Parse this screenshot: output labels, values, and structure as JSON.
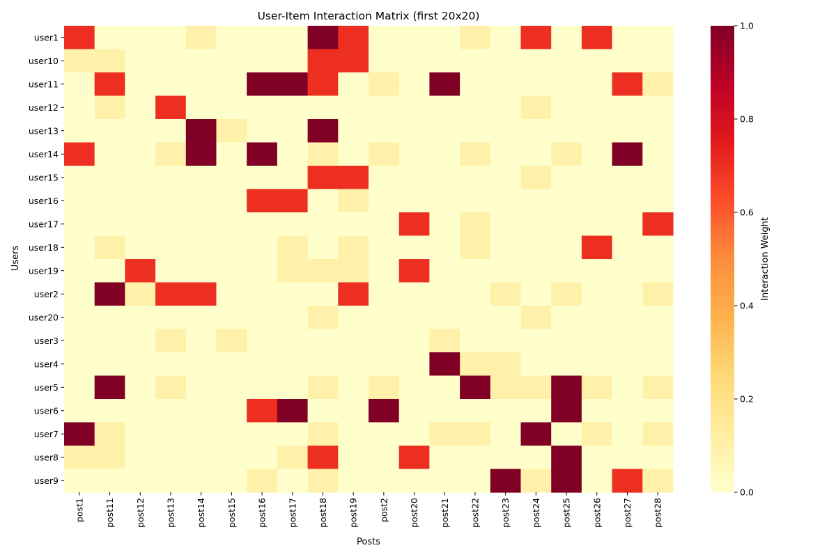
{
  "chart_data": {
    "type": "heatmap",
    "title": "User-Item Interaction Matrix (first 20x20)",
    "xlabel": "Posts",
    "ylabel": "Users",
    "colorbar_label": "Interaction Weight",
    "colormap": "YlOrRd",
    "vmin": 0,
    "vmax": 1,
    "colorbar_ticks": [
      "0.0",
      "0.2",
      "0.4",
      "0.6",
      "0.8",
      "1.0"
    ],
    "x_categories": [
      "post1",
      "post11",
      "post12",
      "post13",
      "post14",
      "post15",
      "post16",
      "post17",
      "post18",
      "post19",
      "post2",
      "post20",
      "post21",
      "post22",
      "post23",
      "post24",
      "post25",
      "post26",
      "post27",
      "post28"
    ],
    "y_categories": [
      "user1",
      "user10",
      "user11",
      "user12",
      "user13",
      "user14",
      "user15",
      "user16",
      "user17",
      "user18",
      "user19",
      "user2",
      "user20",
      "user3",
      "user4",
      "user5",
      "user6",
      "user7",
      "user8",
      "user9"
    ],
    "values": [
      [
        0.7,
        0,
        0,
        0,
        0.1,
        0,
        0,
        0,
        1,
        0.7,
        0,
        0,
        0,
        0.1,
        0,
        0.7,
        0,
        0.7,
        0,
        0
      ],
      [
        0.1,
        0.1,
        0,
        0,
        0,
        0,
        0,
        0,
        0.7,
        0.7,
        0,
        0,
        0,
        0,
        0,
        0,
        0,
        0,
        0,
        0
      ],
      [
        0,
        0.7,
        0,
        0,
        0,
        0,
        1,
        1,
        0.7,
        0,
        0.1,
        0,
        1,
        0,
        0,
        0,
        0,
        0,
        0.7,
        0.1
      ],
      [
        0,
        0.1,
        0,
        0.7,
        0,
        0,
        0,
        0,
        0,
        0,
        0,
        0,
        0,
        0,
        0,
        0.1,
        0,
        0,
        0,
        0
      ],
      [
        0,
        0,
        0,
        0,
        1,
        0.1,
        0,
        0,
        1,
        0,
        0,
        0,
        0,
        0,
        0,
        0,
        0,
        0,
        0,
        0
      ],
      [
        0.7,
        0,
        0,
        0.1,
        1,
        0,
        1,
        0,
        0.1,
        0,
        0.1,
        0,
        0,
        0.1,
        0,
        0,
        0.1,
        0,
        1,
        0
      ],
      [
        0,
        0,
        0,
        0,
        0,
        0,
        0,
        0,
        0.7,
        0.7,
        0,
        0,
        0,
        0,
        0,
        0.1,
        0,
        0,
        0,
        0
      ],
      [
        0,
        0,
        0,
        0,
        0,
        0,
        0.7,
        0.7,
        0,
        0.1,
        0,
        0,
        0,
        0,
        0,
        0,
        0,
        0,
        0,
        0
      ],
      [
        0,
        0,
        0,
        0,
        0,
        0,
        0,
        0,
        0,
        0,
        0,
        0.7,
        0,
        0.1,
        0,
        0,
        0,
        0,
        0,
        0.7
      ],
      [
        0,
        0.1,
        0,
        0,
        0,
        0,
        0,
        0.1,
        0,
        0.1,
        0,
        0,
        0,
        0.1,
        0,
        0,
        0,
        0.7,
        0,
        0
      ],
      [
        0,
        0,
        0.7,
        0,
        0,
        0,
        0,
        0.1,
        0.1,
        0.1,
        0,
        0.7,
        0,
        0,
        0,
        0,
        0,
        0,
        0,
        0
      ],
      [
        0,
        1,
        0.1,
        0.7,
        0.7,
        0,
        0,
        0,
        0,
        0.7,
        0,
        0,
        0,
        0,
        0.1,
        0,
        0.1,
        0,
        0,
        0.1
      ],
      [
        0,
        0,
        0,
        0,
        0,
        0,
        0,
        0,
        0.1,
        0,
        0,
        0,
        0,
        0,
        0,
        0.1,
        0,
        0,
        0,
        0
      ],
      [
        0,
        0,
        0,
        0.1,
        0,
        0.1,
        0,
        0,
        0,
        0,
        0,
        0,
        0.1,
        0,
        0,
        0,
        0,
        0,
        0,
        0
      ],
      [
        0,
        0,
        0,
        0,
        0,
        0,
        0,
        0,
        0,
        0,
        0,
        0,
        1,
        0.1,
        0.1,
        0,
        0,
        0,
        0,
        0
      ],
      [
        0,
        1,
        0,
        0.1,
        0,
        0,
        0,
        0,
        0.1,
        0,
        0.1,
        0,
        0,
        1,
        0.1,
        0.1,
        1,
        0.1,
        0,
        0.1
      ],
      [
        0,
        0,
        0,
        0,
        0,
        0,
        0.7,
        1,
        0,
        0,
        1,
        0,
        0,
        0,
        0,
        0,
        1,
        0,
        0,
        0
      ],
      [
        1,
        0.1,
        0,
        0,
        0,
        0,
        0,
        0,
        0.1,
        0,
        0,
        0,
        0.1,
        0.1,
        0,
        1,
        0,
        0.1,
        0,
        0.1
      ],
      [
        0.1,
        0.1,
        0,
        0,
        0,
        0,
        0,
        0.1,
        0.7,
        0,
        0,
        0.7,
        0,
        0,
        0,
        0,
        1,
        0,
        0,
        0
      ],
      [
        0,
        0,
        0,
        0,
        0,
        0,
        0.1,
        0,
        0.1,
        0,
        0,
        0,
        0,
        0,
        1,
        0.1,
        1,
        0,
        0.7,
        0.1
      ]
    ]
  }
}
